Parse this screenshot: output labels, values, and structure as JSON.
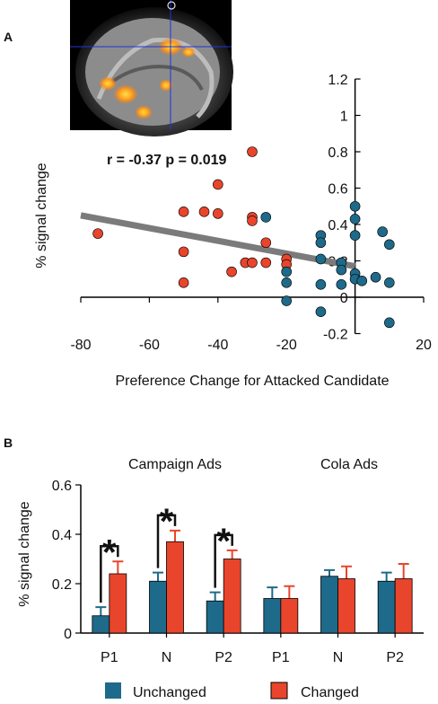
{
  "panel_labels": [
    "A",
    "B"
  ],
  "colors": {
    "unchanged": "#1e6a8a",
    "changed": "#e8452c",
    "fit_line": "#7b7b7b",
    "axis": "#000000"
  },
  "brain_image": {
    "icon": "brain-mri-sagittal-slice"
  },
  "chart_data": [
    {
      "type": "scatter",
      "panel": "A",
      "xlabel": "Preference Change for Attacked Candidate",
      "ylabel": "% signal change",
      "annotation": "r = -0.37 p = 0.019",
      "xlim": [
        -80,
        20
      ],
      "ylim": [
        -0.2,
        1.2
      ],
      "x_ticks": [
        -80,
        -60,
        -40,
        -20,
        0,
        20
      ],
      "y_ticks": [
        -0.2,
        0,
        0.2,
        0.4,
        0.6,
        0.8,
        1,
        1.2
      ],
      "x_tick_labels": [
        "-80",
        "-60",
        "-40",
        "-20",
        "0",
        "20"
      ],
      "y_tick_labels": [
        "-0.2",
        "0",
        "0.2",
        "0.4",
        "0.6",
        "0.8",
        "1",
        "1.2"
      ],
      "fit_line": {
        "x": [
          -80,
          0
        ],
        "y": [
          0.45,
          0.17
        ]
      },
      "series": [
        {
          "color_key": "changed",
          "points": [
            [
              -75,
              0.35
            ],
            [
              -50,
              0.47
            ],
            [
              -50,
              0.25
            ],
            [
              -50,
              0.08
            ],
            [
              -44,
              0.47
            ],
            [
              -40,
              0.62
            ],
            [
              -40,
              0.46
            ],
            [
              -36,
              0.14
            ],
            [
              -32,
              0.19
            ],
            [
              -30,
              0.8
            ],
            [
              -30,
              0.44
            ],
            [
              -30,
              0.42
            ],
            [
              -30,
              0.19
            ],
            [
              -26,
              0.3
            ],
            [
              -26,
              0.19
            ],
            [
              -20,
              0.21
            ],
            [
              -20,
              0.18
            ]
          ]
        },
        {
          "color_key": "unchanged",
          "points": [
            [
              -26,
              0.44
            ],
            [
              -20,
              0.14
            ],
            [
              -20,
              0.08
            ],
            [
              -20,
              -0.02
            ],
            [
              -10,
              0.34
            ],
            [
              -10,
              0.3
            ],
            [
              -10,
              0.21
            ],
            [
              -10,
              0.07
            ],
            [
              -10,
              -0.08
            ],
            [
              -4,
              0.19
            ],
            [
              -4,
              0.15
            ],
            [
              -4,
              0.07
            ],
            [
              0,
              0.5
            ],
            [
              0,
              0.43
            ],
            [
              0,
              0.34
            ],
            [
              0,
              0.13
            ],
            [
              0,
              0.1
            ],
            [
              2,
              0.09
            ],
            [
              6,
              0.11
            ],
            [
              8,
              0.36
            ],
            [
              10,
              0.29
            ],
            [
              10,
              0.08
            ],
            [
              10,
              -0.14
            ]
          ]
        }
      ]
    },
    {
      "type": "bar",
      "panel": "B",
      "ylabel": "% signal change",
      "ylim": [
        0,
        0.6
      ],
      "y_ticks": [
        0,
        0.2,
        0.4,
        0.6
      ],
      "y_tick_labels": [
        "0",
        "0.2",
        "0.4",
        "0.6"
      ],
      "groups": [
        "Campaign Ads",
        "Cola Ads"
      ],
      "categories": [
        "P1",
        "N",
        "P2",
        "P1",
        "N",
        "P2"
      ],
      "series": [
        {
          "name": "Unchanged",
          "color_key": "unchanged",
          "values": [
            0.07,
            0.21,
            0.13,
            0.14,
            0.23,
            0.21
          ],
          "errors": [
            0.035,
            0.035,
            0.035,
            0.045,
            0.025,
            0.035
          ]
        },
        {
          "name": "Changed",
          "color_key": "changed",
          "values": [
            0.24,
            0.37,
            0.3,
            0.14,
            0.22,
            0.22
          ],
          "errors": [
            0.05,
            0.045,
            0.035,
            0.05,
            0.05,
            0.06
          ]
        }
      ],
      "significance": [
        "*",
        "*",
        "*"
      ],
      "significant_category_indices": [
        0,
        1,
        2
      ],
      "legend": [
        "Unchanged",
        "Changed"
      ],
      "legend_position": "bottom"
    }
  ]
}
